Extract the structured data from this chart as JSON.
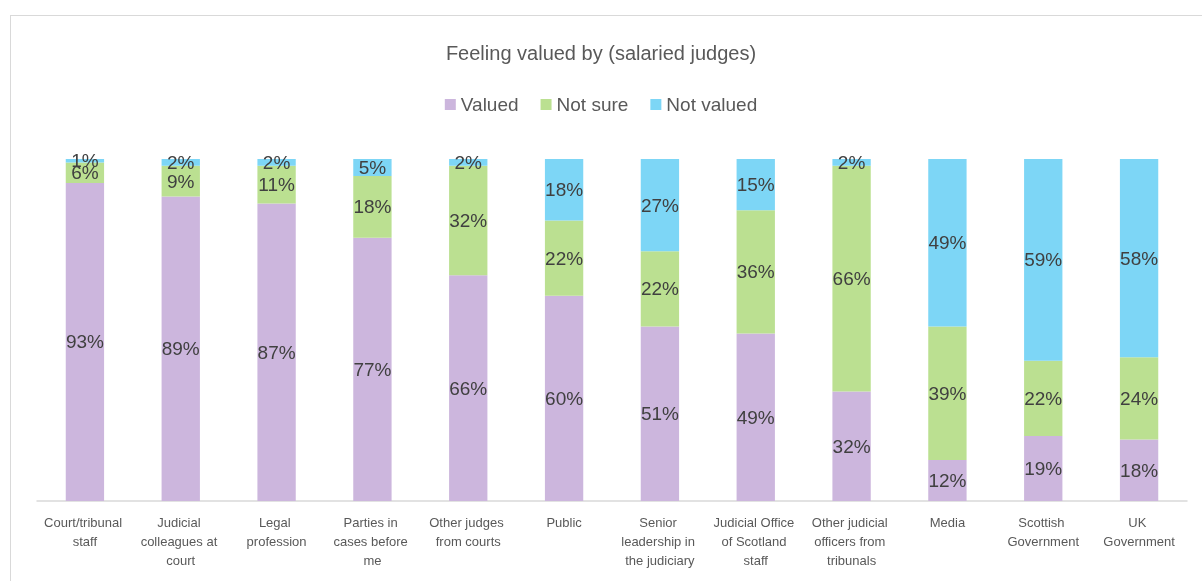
{
  "chart_data": {
    "type": "bar",
    "title": "Feeling valued by (salaried judges)",
    "categories": [
      "Court/tribunal staff",
      "Judicial colleagues at court",
      "Legal profession",
      "Parties in cases before me",
      "Other judges from courts",
      "Public",
      "Senior leadership in the judiciary",
      "Judicial Office of Scotland staff",
      "Other judicial officers from tribunals",
      "Media",
      "Scottish Government",
      "UK Government"
    ],
    "series": [
      {
        "name": "Valued",
        "color": "#ccb6dd",
        "values": [
          93,
          89,
          87,
          77,
          66,
          60,
          51,
          49,
          32,
          12,
          19,
          18
        ],
        "value_labels": [
          "93%",
          "89%",
          "87%",
          "77%",
          "66%",
          "60%",
          "51%",
          "49%",
          "32%",
          "12%",
          "19%",
          "18%"
        ]
      },
      {
        "name": "Not sure",
        "color": "#bbe091",
        "values": [
          6,
          9,
          11,
          18,
          32,
          22,
          22,
          36,
          66,
          39,
          22,
          24
        ],
        "value_labels": [
          "6%",
          "9%",
          "11%",
          "18%",
          "32%",
          "22%",
          "22%",
          "36%",
          "66%",
          "39%",
          "22%",
          "24%"
        ]
      },
      {
        "name": "Not valued",
        "color": "#7dd6f6",
        "values": [
          1,
          2,
          2,
          5,
          2,
          18,
          27,
          15,
          2,
          49,
          59,
          58
        ],
        "value_labels": [
          "1%",
          "2%",
          "2%",
          "5%",
          "2%",
          "18%",
          "27%",
          "15%",
          "2%",
          "49%",
          "59%",
          "58%"
        ]
      }
    ],
    "stacked": true,
    "ylim": [
      0,
      100
    ],
    "tick_labels": "x",
    "legend": "top"
  }
}
